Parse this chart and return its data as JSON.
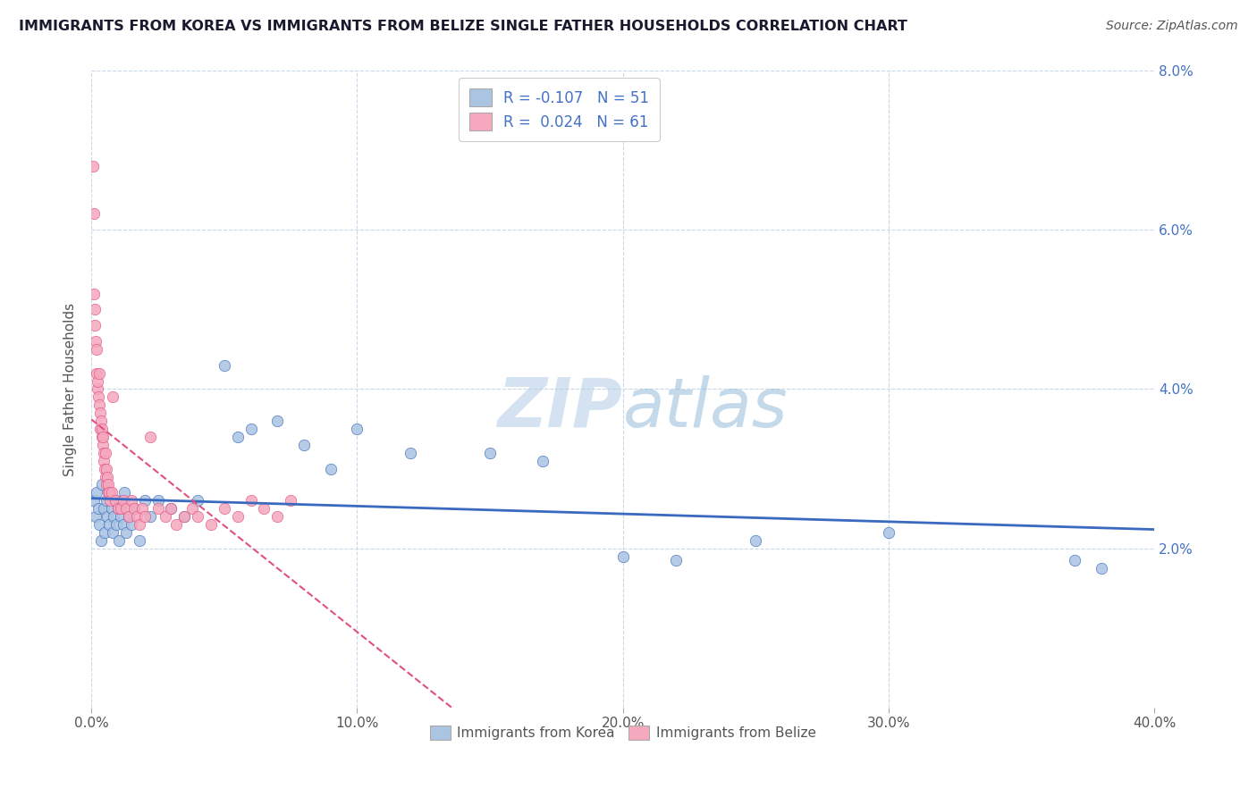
{
  "title": "IMMIGRANTS FROM KOREA VS IMMIGRANTS FROM BELIZE SINGLE FATHER HOUSEHOLDS CORRELATION CHART",
  "source": "Source: ZipAtlas.com",
  "ylabel": "Single Father Households",
  "legend_korea": "Immigrants from Korea",
  "legend_belize": "Immigrants from Belize",
  "R_korea": -0.107,
  "N_korea": 51,
  "R_belize": 0.024,
  "N_belize": 61,
  "color_korea": "#aac4e2",
  "color_belize": "#f5a8be",
  "trendline_korea": "#3a6abf",
  "trendline_belize": "#e05080",
  "background": "#ffffff",
  "grid_color": "#c8d8e8",
  "xlim": [
    0,
    40
  ],
  "ylim": [
    0,
    8
  ],
  "x_tick_vals": [
    0,
    10,
    20,
    30,
    40
  ],
  "y_tick_vals": [
    2,
    4,
    6,
    8
  ],
  "korea_scatter": [
    [
      0.1,
      2.6
    ],
    [
      0.15,
      2.4
    ],
    [
      0.2,
      2.7
    ],
    [
      0.25,
      2.5
    ],
    [
      0.3,
      2.3
    ],
    [
      0.35,
      2.1
    ],
    [
      0.4,
      2.8
    ],
    [
      0.45,
      2.5
    ],
    [
      0.5,
      2.2
    ],
    [
      0.55,
      2.6
    ],
    [
      0.6,
      2.4
    ],
    [
      0.65,
      2.3
    ],
    [
      0.7,
      2.7
    ],
    [
      0.75,
      2.5
    ],
    [
      0.8,
      2.2
    ],
    [
      0.85,
      2.4
    ],
    [
      0.9,
      2.6
    ],
    [
      0.95,
      2.3
    ],
    [
      1.0,
      2.5
    ],
    [
      1.05,
      2.1
    ],
    [
      1.1,
      2.4
    ],
    [
      1.15,
      2.6
    ],
    [
      1.2,
      2.3
    ],
    [
      1.25,
      2.7
    ],
    [
      1.3,
      2.2
    ],
    [
      1.4,
      2.4
    ],
    [
      1.5,
      2.3
    ],
    [
      1.6,
      2.5
    ],
    [
      1.8,
      2.1
    ],
    [
      2.0,
      2.6
    ],
    [
      2.2,
      2.4
    ],
    [
      2.5,
      2.6
    ],
    [
      3.0,
      2.5
    ],
    [
      3.5,
      2.4
    ],
    [
      4.0,
      2.6
    ],
    [
      5.0,
      4.3
    ],
    [
      5.5,
      3.4
    ],
    [
      6.0,
      3.5
    ],
    [
      7.0,
      3.6
    ],
    [
      8.0,
      3.3
    ],
    [
      9.0,
      3.0
    ],
    [
      10.0,
      3.5
    ],
    [
      12.0,
      3.2
    ],
    [
      15.0,
      3.2
    ],
    [
      17.0,
      3.1
    ],
    [
      20.0,
      1.9
    ],
    [
      22.0,
      1.85
    ],
    [
      25.0,
      2.1
    ],
    [
      30.0,
      2.2
    ],
    [
      37.0,
      1.85
    ],
    [
      38.0,
      1.75
    ]
  ],
  "belize_scatter": [
    [
      0.05,
      6.8
    ],
    [
      0.08,
      6.2
    ],
    [
      0.1,
      5.2
    ],
    [
      0.12,
      5.0
    ],
    [
      0.14,
      4.8
    ],
    [
      0.16,
      4.6
    ],
    [
      0.18,
      4.5
    ],
    [
      0.2,
      4.2
    ],
    [
      0.22,
      4.0
    ],
    [
      0.24,
      4.1
    ],
    [
      0.26,
      3.9
    ],
    [
      0.28,
      4.2
    ],
    [
      0.3,
      3.8
    ],
    [
      0.32,
      3.7
    ],
    [
      0.34,
      3.5
    ],
    [
      0.36,
      3.6
    ],
    [
      0.38,
      3.4
    ],
    [
      0.4,
      3.5
    ],
    [
      0.42,
      3.3
    ],
    [
      0.44,
      3.4
    ],
    [
      0.46,
      3.2
    ],
    [
      0.48,
      3.1
    ],
    [
      0.5,
      3.0
    ],
    [
      0.52,
      3.2
    ],
    [
      0.54,
      2.9
    ],
    [
      0.56,
      3.0
    ],
    [
      0.58,
      2.8
    ],
    [
      0.6,
      2.9
    ],
    [
      0.62,
      2.7
    ],
    [
      0.64,
      2.8
    ],
    [
      0.66,
      2.7
    ],
    [
      0.7,
      2.6
    ],
    [
      0.75,
      2.7
    ],
    [
      0.8,
      3.9
    ],
    [
      0.9,
      2.6
    ],
    [
      1.0,
      2.5
    ],
    [
      1.1,
      2.5
    ],
    [
      1.2,
      2.6
    ],
    [
      1.3,
      2.5
    ],
    [
      1.4,
      2.4
    ],
    [
      1.5,
      2.6
    ],
    [
      1.6,
      2.5
    ],
    [
      1.7,
      2.4
    ],
    [
      1.8,
      2.3
    ],
    [
      1.9,
      2.5
    ],
    [
      2.0,
      2.4
    ],
    [
      2.2,
      3.4
    ],
    [
      2.5,
      2.5
    ],
    [
      2.8,
      2.4
    ],
    [
      3.0,
      2.5
    ],
    [
      3.2,
      2.3
    ],
    [
      3.5,
      2.4
    ],
    [
      3.8,
      2.5
    ],
    [
      4.0,
      2.4
    ],
    [
      4.5,
      2.3
    ],
    [
      5.0,
      2.5
    ],
    [
      5.5,
      2.4
    ],
    [
      6.0,
      2.6
    ],
    [
      6.5,
      2.5
    ],
    [
      7.0,
      2.4
    ],
    [
      7.5,
      2.6
    ]
  ]
}
